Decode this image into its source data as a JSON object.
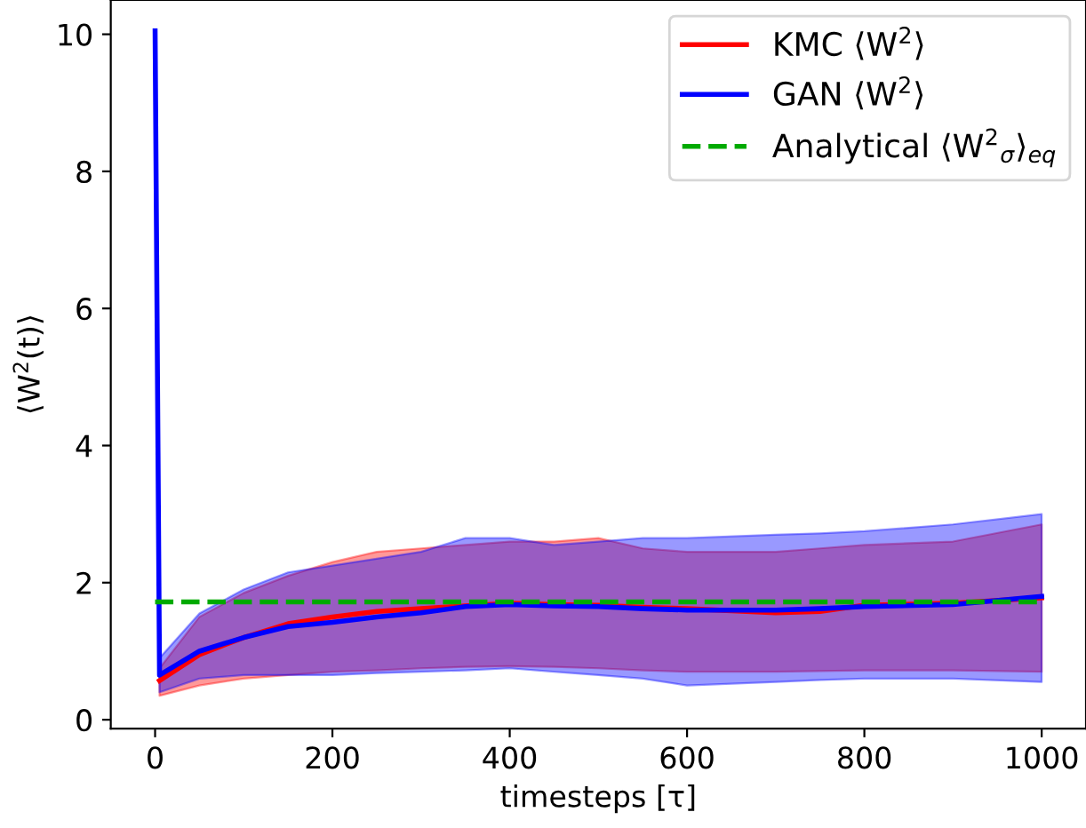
{
  "chart_data": {
    "type": "line",
    "xlabel": "timesteps [τ]",
    "ylabel": "⟨W$^{2}$(t)⟩",
    "xlim": [
      -50,
      1050
    ],
    "ylim": [
      -0.13,
      10.5
    ],
    "xticks": [
      0,
      200,
      400,
      600,
      800,
      1000
    ],
    "yticks": [
      0,
      2,
      4,
      6,
      8,
      10
    ],
    "legend": "top right",
    "series": [
      {
        "name": "KMC ⟨W$^{2}$⟩",
        "color": "#ff0000",
        "x": [
          0,
          5,
          50,
          100,
          150,
          200,
          250,
          300,
          350,
          400,
          450,
          500,
          550,
          600,
          700,
          750,
          800,
          900,
          1000
        ],
        "values": [
          null,
          0.57,
          0.95,
          1.2,
          1.4,
          1.5,
          1.58,
          1.62,
          1.66,
          1.7,
          1.68,
          1.67,
          1.64,
          1.62,
          1.56,
          1.58,
          1.67,
          1.7,
          1.78
        ],
        "lower": [
          10.05,
          0.35,
          0.5,
          0.6,
          0.65,
          0.7,
          0.72,
          0.75,
          0.77,
          0.78,
          0.77,
          0.75,
          0.72,
          0.7,
          0.7,
          0.71,
          0.72,
          0.72,
          0.7
        ],
        "upper": [
          10.05,
          0.75,
          1.5,
          1.85,
          2.1,
          2.3,
          2.45,
          2.5,
          2.55,
          2.6,
          2.6,
          2.65,
          2.5,
          2.45,
          2.45,
          2.5,
          2.55,
          2.6,
          2.85
        ]
      },
      {
        "name": "GAN ⟨W$^{2}$⟩",
        "color": "#0000ff",
        "x": [
          0,
          5,
          50,
          100,
          150,
          200,
          250,
          300,
          350,
          400,
          450,
          500,
          550,
          600,
          700,
          750,
          800,
          900,
          1000
        ],
        "values": [
          10.05,
          0.65,
          1.0,
          1.2,
          1.36,
          1.42,
          1.5,
          1.56,
          1.65,
          1.68,
          1.66,
          1.65,
          1.62,
          1.6,
          1.6,
          1.62,
          1.65,
          1.68,
          1.8
        ],
        "lower": [
          10.05,
          0.4,
          0.6,
          0.65,
          0.65,
          0.65,
          0.68,
          0.7,
          0.72,
          0.75,
          0.7,
          0.65,
          0.6,
          0.5,
          0.55,
          0.58,
          0.6,
          0.6,
          0.55
        ],
        "upper": [
          10.05,
          0.9,
          1.55,
          1.9,
          2.15,
          2.25,
          2.35,
          2.45,
          2.65,
          2.65,
          2.55,
          2.6,
          2.65,
          2.65,
          2.7,
          2.72,
          2.75,
          2.85,
          3.0
        ]
      },
      {
        "name": "Analytical ⟨W$^{2}$$_{σ}$⟩$_{eq}$",
        "color": "#00aa00",
        "line_style": "dashed",
        "x": [
          0,
          1000
        ],
        "values": [
          1.72,
          1.72
        ]
      }
    ]
  }
}
